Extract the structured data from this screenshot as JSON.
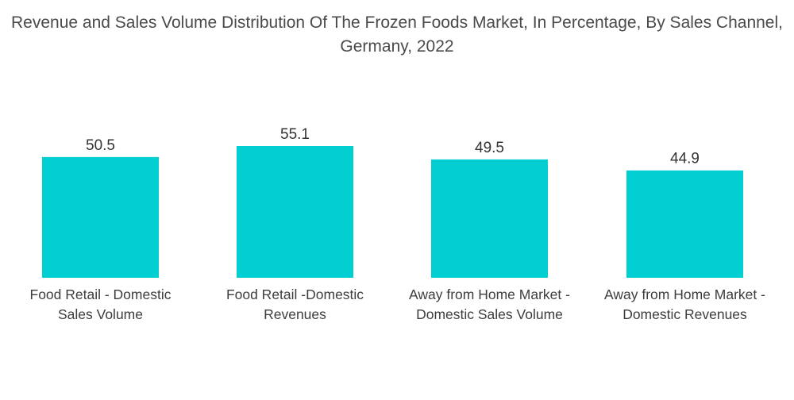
{
  "chart_data": {
    "type": "bar",
    "title": "Revenue and Sales Volume Distribution Of The Frozen Foods Market, In Percentage, By Sales Channel, Germany, 2022",
    "categories": [
      "Food Retail - Domestic Sales Volume",
      "Food Retail -Domestic Revenues",
      "Away from Home Market - Domestic Sales Volume",
      "Away from Home Market - Domestic Revenues"
    ],
    "category_label_lines": [
      [
        "Food Retail - Domestic",
        "Sales Volume"
      ],
      [
        "Food Retail -Domestic",
        "Revenues"
      ],
      [
        "Away from Home Market -",
        "Domestic Sales Volume"
      ],
      [
        "Away from Home Market -",
        "Domestic Revenues"
      ]
    ],
    "values": [
      50.5,
      55.1,
      49.5,
      44.9
    ],
    "value_labels": [
      "50.5",
      "55.1",
      "49.5",
      "44.9"
    ],
    "xlabel": "",
    "ylabel": "",
    "grid": false,
    "legend": "none",
    "bar_color": "#00CED1"
  }
}
